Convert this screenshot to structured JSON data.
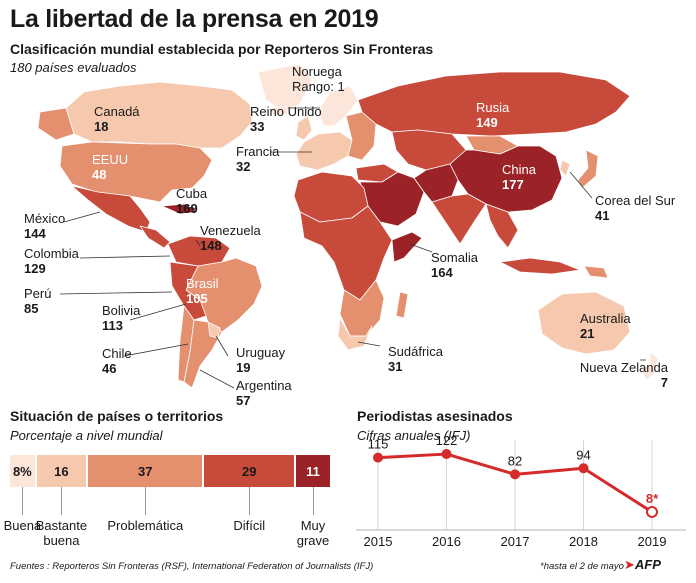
{
  "title": "La libertad de la prensa en 2019",
  "subtitle": "Clasificación mundial establecida por Reporteros Sin Fronteras",
  "subnote": "180 países evaluados",
  "colors": {
    "buena": "#fbe6d9",
    "bastante_buena": "#f6c9ae",
    "problematica": "#e48f6e",
    "dificil": "#c84a3a",
    "muy_grave": "#9b2227",
    "line": "#d42a2a"
  },
  "map_labels": {
    "noruega": {
      "name": "Noruega",
      "rank_text": "Rango: 1"
    },
    "canada": {
      "name": "Canadá",
      "rank": "18"
    },
    "reino_unido": {
      "name": "Reino Unido",
      "rank": "33"
    },
    "rusia": {
      "name": "Rusia",
      "rank": "149"
    },
    "francia": {
      "name": "Francia",
      "rank": "32"
    },
    "eeuu": {
      "name": "EEUU",
      "rank": "48"
    },
    "china": {
      "name": "China",
      "rank": "177"
    },
    "cuba": {
      "name": "Cuba",
      "rank": "169"
    },
    "corea": {
      "name": "Corea del Sur",
      "rank": "41"
    },
    "mexico": {
      "name": "México",
      "rank": "144"
    },
    "venezuela": {
      "name": "Venezuela",
      "rank": "148"
    },
    "colombia": {
      "name": "Colombia",
      "rank": "129"
    },
    "somalia": {
      "name": "Somalia",
      "rank": "164"
    },
    "brasil": {
      "name": "Brasil",
      "rank": "105"
    },
    "peru": {
      "name": "Perú",
      "rank": "85"
    },
    "bolivia": {
      "name": "Bolivia",
      "rank": "113"
    },
    "australia": {
      "name": "Australia",
      "rank": "21"
    },
    "chile": {
      "name": "Chile",
      "rank": "46"
    },
    "uruguay": {
      "name": "Uruguay",
      "rank": "19"
    },
    "sudafrica": {
      "name": "Sudáfrica",
      "rank": "31"
    },
    "argentina": {
      "name": "Argentina",
      "rank": "57"
    },
    "nueva_zelanda": {
      "name": "Nueva Zelanda",
      "rank": "7"
    }
  },
  "situation": {
    "title": "Situación de países o territorios",
    "subtitle": "Porcentaje a nivel mundial",
    "categories": [
      "Buena",
      "Bastante buena",
      "Problemática",
      "Difícil",
      "Muy grave"
    ],
    "values": [
      8,
      16,
      37,
      29,
      11
    ],
    "labels": [
      "8%",
      "16",
      "37",
      "29",
      "11"
    ]
  },
  "chart_data": {
    "type": "line",
    "title": "Periodistas asesinados",
    "subtitle": "Cifras anuales (IFJ)",
    "x": [
      "2015",
      "2016",
      "2017",
      "2018",
      "2019"
    ],
    "values": [
      115,
      122,
      82,
      94,
      8
    ],
    "value_labels": [
      "115",
      "122",
      "82",
      "94",
      "8*"
    ],
    "last_point_marked": true
  },
  "footer": "Fuentes : Reporteros Sin Fronteras (RSF), International Federation of Journalists (IFJ)",
  "footnote": "*hasta el 2 de mayo",
  "logo_text": "AFP"
}
